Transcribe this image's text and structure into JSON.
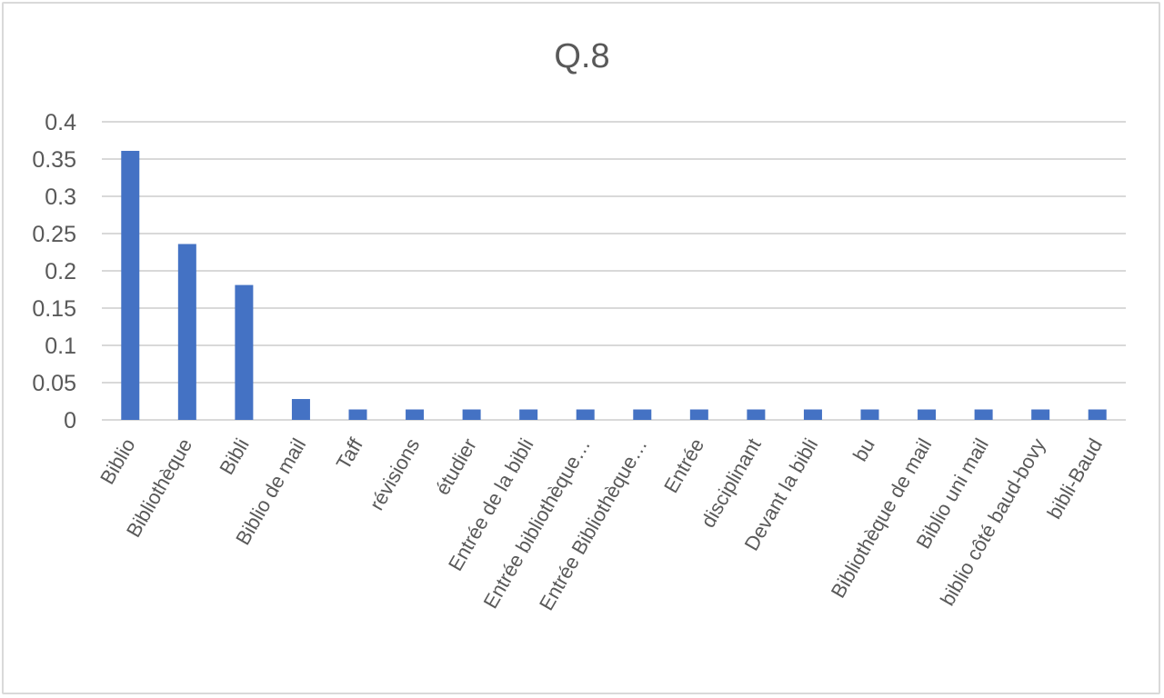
{
  "chart_data": {
    "type": "bar",
    "title": "Q.8",
    "xlabel": "",
    "ylabel": "",
    "ylim": [
      0,
      0.4
    ],
    "yticks": [
      "0",
      "0.05",
      "0.1",
      "0.15",
      "0.2",
      "0.25",
      "0.3",
      "0.35",
      "0.4"
    ],
    "ytick_values": [
      0,
      0.05,
      0.1,
      0.15,
      0.2,
      0.25,
      0.3,
      0.35,
      0.4
    ],
    "grid": true,
    "legend": "none",
    "categories": [
      "Biblio",
      "Bibliothèque",
      "Bibli",
      "Biblio de mail",
      "Taff",
      "révisions",
      "étudier",
      "Entrée de la bibli",
      "Entrée bibliothèque…",
      "Entrée Bibliothèque…",
      "Entrée",
      "disciplinant",
      "Devant la bibli",
      "bu",
      "Bibliothèque de mail",
      "Biblio uni mail",
      "biblio côté baud-bovy",
      "bibli-Baud"
    ],
    "values": [
      0.361,
      0.236,
      0.181,
      0.028,
      0.014,
      0.014,
      0.014,
      0.014,
      0.014,
      0.014,
      0.014,
      0.014,
      0.014,
      0.014,
      0.014,
      0.014,
      0.014,
      0.014
    ],
    "colors": {
      "bar": "#4472c4",
      "grid": "#d9d9d9",
      "text": "#595959"
    }
  }
}
